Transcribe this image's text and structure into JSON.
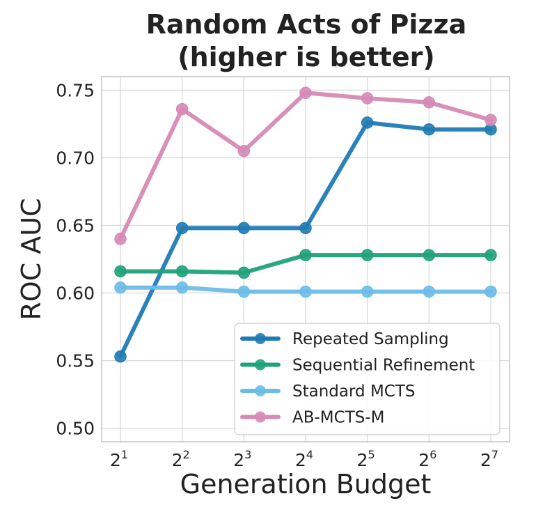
{
  "chart_data": {
    "type": "line",
    "title_lines": [
      "Random Acts of Pizza",
      "(higher is better)"
    ],
    "xlabel": "Generation Budget",
    "ylabel": "ROC AUC",
    "x_base": "2",
    "x_exponents": [
      "1",
      "2",
      "3",
      "4",
      "5",
      "6",
      "7"
    ],
    "ylim": [
      0.49,
      0.76
    ],
    "yticks": [
      0.5,
      0.55,
      0.6,
      0.65,
      0.7,
      0.75
    ],
    "ytick_labels": [
      "0.50",
      "0.55",
      "0.60",
      "0.65",
      "0.70",
      "0.75"
    ],
    "grid": true,
    "legend_position": "lower-right",
    "series": [
      {
        "name": "Repeated Sampling",
        "color": "#1f7bb4",
        "values": [
          0.553,
          0.648,
          0.648,
          0.648,
          0.726,
          0.721,
          0.721
        ]
      },
      {
        "name": "Sequential Refinement",
        "color": "#1fa27a",
        "values": [
          0.616,
          0.616,
          0.615,
          0.628,
          0.628,
          0.628,
          0.628
        ]
      },
      {
        "name": "Standard MCTS",
        "color": "#6bbde8",
        "values": [
          0.604,
          0.604,
          0.601,
          0.601,
          0.601,
          0.601,
          0.601
        ]
      },
      {
        "name": "AB-MCTS-M",
        "color": "#d68ab5",
        "values": [
          0.64,
          0.736,
          0.705,
          0.748,
          0.744,
          0.741,
          0.728
        ]
      }
    ]
  }
}
